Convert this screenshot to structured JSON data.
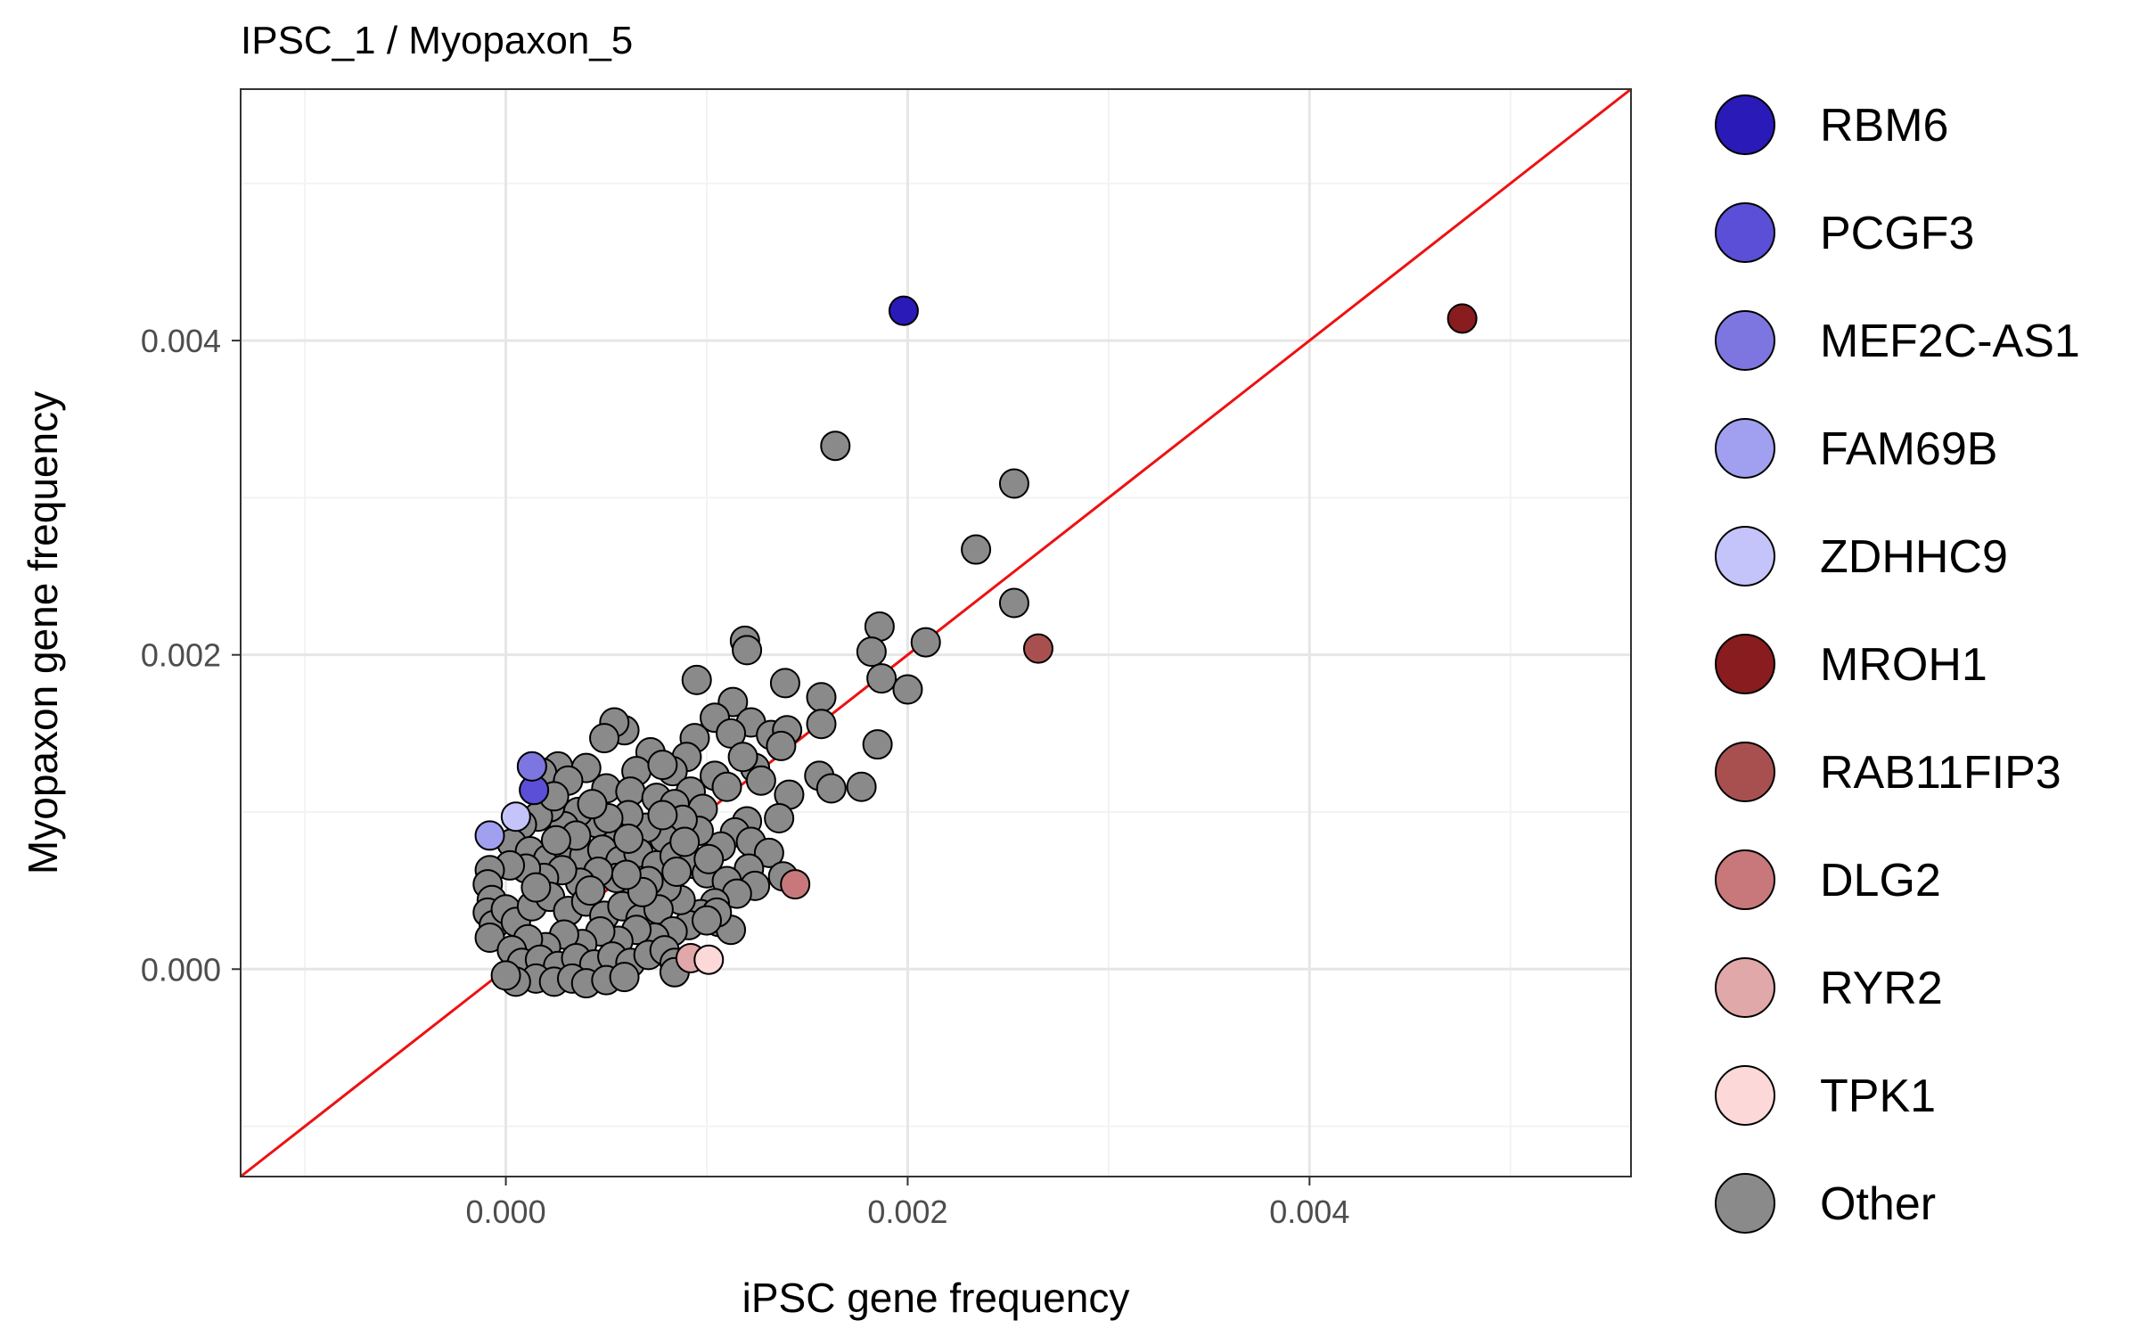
{
  "chart_data": {
    "type": "scatter",
    "title": "IPSC_1  /  Myopaxon_5",
    "xlabel": "iPSC gene frequency",
    "ylabel": "Myopaxon gene frequency",
    "xlim": [
      -0.00132,
      0.0056
    ],
    "ylim": [
      -0.00132,
      0.0056
    ],
    "x_ticks": [
      0.0,
      0.002,
      0.004
    ],
    "y_ticks": [
      0.0,
      0.002,
      0.004
    ],
    "x_tick_labels": [
      "0.000",
      "0.002",
      "0.004"
    ],
    "y_tick_labels": [
      "0.000",
      "0.002",
      "0.004"
    ],
    "grid": true,
    "reference_line": {
      "label": "y = x",
      "color": "#ee1111"
    },
    "legend_position": "right",
    "legend": [
      {
        "name": "RBM6",
        "color": "#2a1ab8"
      },
      {
        "name": "PCGF3",
        "color": "#5a4fd6"
      },
      {
        "name": "MEF2C-AS1",
        "color": "#7d76e0"
      },
      {
        "name": "FAM69B",
        "color": "#a19ff0"
      },
      {
        "name": "ZDHHC9",
        "color": "#c4c4fa"
      },
      {
        "name": "MROH1",
        "color": "#881c1e"
      },
      {
        "name": "RAB11FIP3",
        "color": "#a85050"
      },
      {
        "name": "DLG2",
        "color": "#c8787a"
      },
      {
        "name": "RYR2",
        "color": "#e0a8a8"
      },
      {
        "name": "TPK1",
        "color": "#fcd8d8"
      },
      {
        "name": "Other",
        "color": "#8a8a8a"
      }
    ],
    "highlighted_points": [
      {
        "name": "RBM6",
        "x": 0.00198,
        "y": 0.00419
      },
      {
        "name": "PCGF3",
        "x": 0.00013,
        "y": 0.00129
      },
      {
        "name": "PCGF3",
        "x": 0.00014,
        "y": 0.00114
      },
      {
        "name": "MEF2C-AS1",
        "x": 0.00013,
        "y": 0.00129
      },
      {
        "name": "FAM69B",
        "x": -8e-05,
        "y": 0.00085
      },
      {
        "name": "ZDHHC9",
        "x": 5e-05,
        "y": 0.00097
      },
      {
        "name": "MROH1",
        "x": 0.00476,
        "y": 0.00414
      },
      {
        "name": "RAB11FIP3",
        "x": 0.00265,
        "y": 0.00204
      },
      {
        "name": "DLG2",
        "x": 0.00144,
        "y": 0.00054
      },
      {
        "name": "RYR2",
        "x": 0.00092,
        "y": 7e-05
      },
      {
        "name": "TPK1",
        "x": 0.00101,
        "y": 6e-05
      }
    ],
    "other_points": [
      [
        0.00164,
        0.00333
      ],
      [
        0.00253,
        0.00309
      ],
      [
        0.00234,
        0.00267
      ],
      [
        0.00253,
        0.00233
      ],
      [
        0.00186,
        0.00218
      ],
      [
        0.00209,
        0.00208
      ],
      [
        0.00182,
        0.00202
      ],
      [
        0.00119,
        0.00209
      ],
      [
        0.0012,
        0.00203
      ],
      [
        0.00095,
        0.00184
      ],
      [
        0.00139,
        0.00182
      ],
      [
        0.00187,
        0.00185
      ],
      [
        0.002,
        0.00178
      ],
      [
        0.00157,
        0.00173
      ],
      [
        0.00113,
        0.0017
      ],
      [
        0.00104,
        0.0016
      ],
      [
        0.00122,
        0.00157
      ],
      [
        0.00132,
        0.00149
      ],
      [
        0.0014,
        0.00152
      ],
      [
        0.00157,
        0.00156
      ],
      [
        0.00185,
        0.00143
      ],
      [
        0.00137,
        0.00142
      ],
      [
        0.00112,
        0.0015
      ],
      [
        0.00094,
        0.00147
      ],
      [
        0.0009,
        0.00135
      ],
      [
        0.00083,
        0.00126
      ],
      [
        0.00104,
        0.00123
      ],
      [
        0.00124,
        0.00128
      ],
      [
        0.00118,
        0.00135
      ],
      [
        0.00156,
        0.00123
      ],
      [
        0.00127,
        0.0012
      ],
      [
        0.0011,
        0.00116
      ],
      [
        0.00092,
        0.00113
      ],
      [
        0.00141,
        0.00111
      ],
      [
        0.00162,
        0.00115
      ],
      [
        0.00177,
        0.00116
      ],
      [
        0.00059,
        0.00152
      ],
      [
        0.00054,
        0.00157
      ],
      [
        0.00049,
        0.00147
      ],
      [
        0.00072,
        0.00138
      ],
      [
        0.00065,
        0.00126
      ],
      [
        0.00078,
        0.0013
      ],
      [
        0.0004,
        0.00128
      ],
      [
        0.00026,
        0.00129
      ],
      [
        0.00018,
        0.00125
      ],
      [
        0.00031,
        0.0012
      ],
      [
        0.0005,
        0.00115
      ],
      [
        0.00062,
        0.00113
      ],
      [
        0.00075,
        0.00109
      ],
      [
        0.00084,
        0.00105
      ],
      [
        0.00098,
        0.00102
      ],
      [
        0.0012,
        0.00094
      ],
      [
        0.00114,
        0.00087
      ],
      [
        0.00122,
        0.00081
      ],
      [
        0.00136,
        0.00096
      ],
      [
        0.00131,
        0.00074
      ],
      [
        0.00121,
        0.00064
      ],
      [
        0.00107,
        0.00078
      ],
      [
        0.00096,
        0.00088
      ],
      [
        0.00088,
        0.00095
      ],
      [
        0.00079,
        0.00083
      ],
      [
        0.0007,
        0.0009
      ],
      [
        0.00061,
        0.00098
      ],
      [
        0.00053,
        0.00086
      ],
      [
        0.00045,
        0.00093
      ],
      [
        0.00036,
        0.001
      ],
      [
        0.00029,
        0.00091
      ],
      [
        0.00022,
        0.00103
      ],
      [
        0.00016,
        0.00097
      ],
      [
        8e-05,
        0.00092
      ],
      [
        3e-05,
        0.0008
      ],
      [
        0.00012,
        0.00075
      ],
      [
        0.00021,
        0.0007
      ],
      [
        0.0003,
        0.00078
      ],
      [
        0.00039,
        0.00072
      ],
      [
        0.00048,
        0.00076
      ],
      [
        0.00057,
        0.00069
      ],
      [
        0.00066,
        0.00074
      ],
      [
        0.00075,
        0.00066
      ],
      [
        0.00084,
        0.00072
      ],
      [
        0.00093,
        0.00067
      ],
      [
        0.001,
        0.00061
      ],
      [
        0.0011,
        0.00056
      ],
      [
        0.00124,
        0.00053
      ],
      [
        0.00138,
        0.00059
      ],
      [
        0.00115,
        0.00048
      ],
      [
        0.00104,
        0.00042
      ],
      [
        0.00097,
        0.00035
      ],
      [
        0.00106,
        0.0003
      ],
      [
        0.00112,
        0.00025
      ],
      [
        0.00091,
        0.00028
      ],
      [
        0.00087,
        0.00044
      ],
      [
        0.0008,
        0.00052
      ],
      [
        0.00071,
        0.00056
      ],
      [
        0.00063,
        0.00049
      ],
      [
        0.00055,
        0.00058
      ],
      [
        0.00046,
        0.00062
      ],
      [
        0.00037,
        0.00055
      ],
      [
        0.00028,
        0.00063
      ],
      [
        0.00019,
        0.00058
      ],
      [
        0.0001,
        0.00064
      ],
      [
        2e-05,
        0.00066
      ],
      [
        -8e-05,
        0.00063
      ],
      [
        -9e-05,
        0.00054
      ],
      [
        -7e-05,
        0.00044
      ],
      [
        -9e-05,
        0.00036
      ],
      [
        -6e-05,
        0.00028
      ],
      [
        -8e-05,
        0.0002
      ],
      [
        0.0,
        0.00038
      ],
      [
        5e-05,
        0.0003
      ],
      [
        0.00013,
        0.0004
      ],
      [
        0.00022,
        0.00046
      ],
      [
        0.00031,
        0.00037
      ],
      [
        0.0004,
        0.00043
      ],
      [
        0.00049,
        0.00034
      ],
      [
        0.00058,
        0.0004
      ],
      [
        0.00067,
        0.00032
      ],
      [
        0.00076,
        0.00038
      ],
      [
        0.00083,
        0.00024
      ],
      [
        0.00074,
        0.0002
      ],
      [
        0.00065,
        0.00025
      ],
      [
        0.00056,
        0.00018
      ],
      [
        0.00047,
        0.00024
      ],
      [
        0.00038,
        0.00016
      ],
      [
        0.00029,
        0.00022
      ],
      [
        0.0002,
        0.00014
      ],
      [
        0.00011,
        0.00019
      ],
      [
        3e-05,
        0.00012
      ],
      [
        8e-05,
        4e-05
      ],
      [
        0.00017,
        6e-05
      ],
      [
        0.00026,
        2e-05
      ],
      [
        0.00035,
        7e-05
      ],
      [
        0.00044,
        3e-05
      ],
      [
        0.00053,
        8e-05
      ],
      [
        0.00062,
        4e-05
      ],
      [
        0.00071,
        9e-05
      ],
      [
        0.00079,
        0.00012
      ],
      [
        0.00084,
        4e-05
      ],
      [
        0.00105,
        0.00036
      ],
      [
        0.001,
        0.00031
      ],
      [
        0.00015,
        -6e-05
      ],
      [
        0.00024,
        -8e-05
      ],
      [
        0.00033,
        -6e-05
      ],
      [
        0.0004,
        -9e-05
      ],
      [
        0.0005,
        -7e-05
      ],
      [
        0.00059,
        -5e-05
      ],
      [
        5e-05,
        -8e-05
      ],
      [
        0.0,
        -4e-05
      ],
      [
        0.00084,
        -2e-05
      ],
      [
        0.00068,
        0.00049
      ],
      [
        0.00085,
        0.00062
      ],
      [
        0.00051,
        0.00096
      ],
      [
        0.00024,
        0.0011
      ],
      [
        0.00035,
        0.00085
      ],
      [
        0.00043,
        0.00105
      ],
      [
        0.00061,
        0.00083
      ],
      [
        0.00078,
        0.00098
      ],
      [
        0.00101,
        0.0007
      ],
      [
        0.00089,
        0.00081
      ],
      [
        0.00015,
        0.00052
      ],
      [
        0.00025,
        0.00082
      ],
      [
        0.00042,
        0.0005
      ],
      [
        0.0006,
        0.0006
      ]
    ]
  }
}
